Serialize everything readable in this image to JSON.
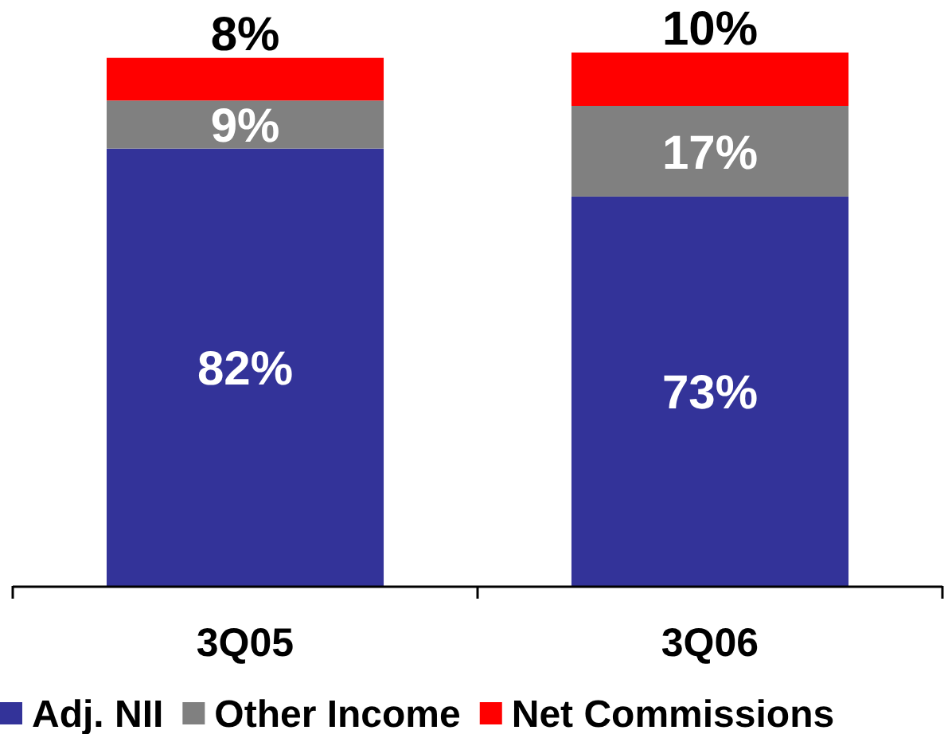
{
  "chart_data": {
    "type": "bar",
    "stacked": true,
    "categories": [
      "3Q05",
      "3Q06"
    ],
    "series": [
      {
        "name": "Adj. NII",
        "color": "#333399",
        "values": [
          82,
          73
        ],
        "value_labels": [
          "82%",
          "73%"
        ]
      },
      {
        "name": "Other Income",
        "color": "#808080",
        "values": [
          9,
          17
        ],
        "value_labels": [
          "9%",
          "17%"
        ]
      },
      {
        "name": "Net Commissions",
        "color": "#ff0000",
        "values": [
          8,
          10
        ],
        "value_labels": [
          "8%",
          "10%"
        ]
      }
    ],
    "legend": "bottom"
  }
}
